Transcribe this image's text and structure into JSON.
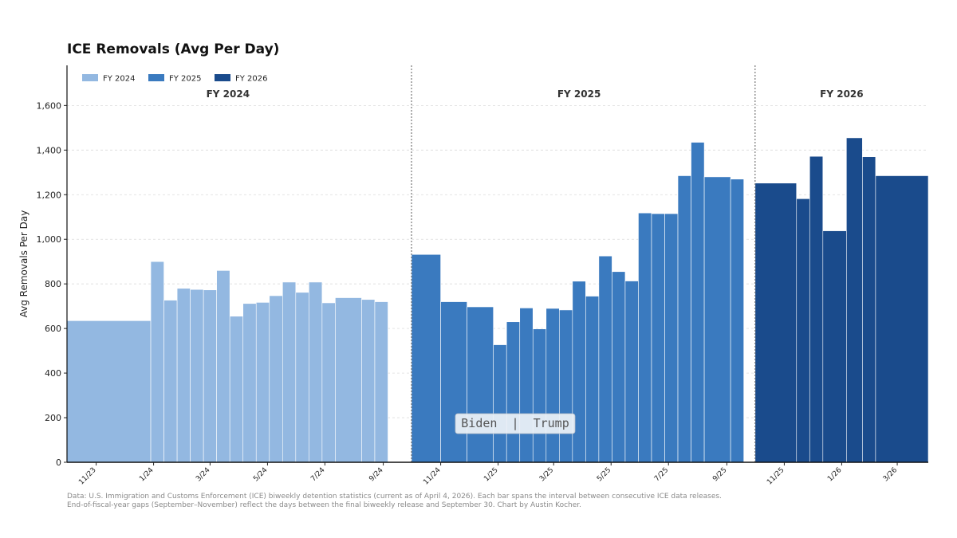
{
  "chart_data": {
    "type": "bar",
    "title": "ICE Removals (Avg Per Day)",
    "xlabel": "",
    "ylabel": "Avg Removals Per Day",
    "ylim": [
      0,
      1780
    ],
    "yticks": [
      0,
      200,
      400,
      600,
      800,
      1000,
      1200,
      1400,
      1600
    ],
    "ytick_labels": [
      "0",
      "200",
      "400",
      "600",
      "800",
      "1,000",
      "1,200",
      "1,400",
      "1,600"
    ],
    "x_axis_unit": "days since 2023-10-01",
    "xlim": [
      0,
      915
    ],
    "xticks": [
      {
        "label": "11/23",
        "day": 31
      },
      {
        "label": "1/24",
        "day": 92
      },
      {
        "label": "3/24",
        "day": 152
      },
      {
        "label": "5/24",
        "day": 213
      },
      {
        "label": "7/24",
        "day": 274
      },
      {
        "label": "9/24",
        "day": 336
      },
      {
        "label": "11/24",
        "day": 397
      },
      {
        "label": "1/25",
        "day": 458
      },
      {
        "label": "3/25",
        "day": 517
      },
      {
        "label": "5/25",
        "day": 578
      },
      {
        "label": "7/25",
        "day": 639
      },
      {
        "label": "9/25",
        "day": 701
      },
      {
        "label": "11/25",
        "day": 762
      },
      {
        "label": "1/26",
        "day": 823
      },
      {
        "label": "3/26",
        "day": 882
      }
    ],
    "grid": true,
    "legend_position": "top-left",
    "fy_dividers": [
      {
        "day": 366,
        "style": "dotted"
      },
      {
        "day": 731,
        "style": "dotted"
      }
    ],
    "fiscal_years": [
      {
        "label": "FY 2024",
        "color": "#93b8e1",
        "header_day": 171
      },
      {
        "label": "FY 2025",
        "color": "#3a7abf",
        "header_day": 544
      },
      {
        "label": "FY 2026",
        "color": "#1a4b8c",
        "header_day": 823
      }
    ],
    "series": [
      {
        "name": "FY 2024",
        "bars": [
          {
            "start": 0,
            "end": 89,
            "value": 635
          },
          {
            "start": 89,
            "end": 103,
            "value": 900
          },
          {
            "start": 103,
            "end": 117,
            "value": 727
          },
          {
            "start": 117,
            "end": 131,
            "value": 780
          },
          {
            "start": 131,
            "end": 145,
            "value": 775
          },
          {
            "start": 145,
            "end": 159,
            "value": 773
          },
          {
            "start": 159,
            "end": 173,
            "value": 860
          },
          {
            "start": 173,
            "end": 187,
            "value": 655
          },
          {
            "start": 187,
            "end": 201,
            "value": 712
          },
          {
            "start": 201,
            "end": 215,
            "value": 717
          },
          {
            "start": 215,
            "end": 229,
            "value": 747
          },
          {
            "start": 229,
            "end": 243,
            "value": 808
          },
          {
            "start": 243,
            "end": 257,
            "value": 762
          },
          {
            "start": 257,
            "end": 271,
            "value": 808
          },
          {
            "start": 271,
            "end": 285,
            "value": 715
          },
          {
            "start": 285,
            "end": 313,
            "value": 738
          },
          {
            "start": 313,
            "end": 327,
            "value": 730
          },
          {
            "start": 327,
            "end": 341,
            "value": 720
          }
        ]
      },
      {
        "name": "FY 2025",
        "bars": [
          {
            "start": 366,
            "end": 397,
            "value": 932
          },
          {
            "start": 397,
            "end": 425,
            "value": 720
          },
          {
            "start": 425,
            "end": 453,
            "value": 697
          },
          {
            "start": 453,
            "end": 467,
            "value": 527
          },
          {
            "start": 467,
            "end": 481,
            "value": 630
          },
          {
            "start": 481,
            "end": 495,
            "value": 692
          },
          {
            "start": 495,
            "end": 509,
            "value": 598
          },
          {
            "start": 509,
            "end": 523,
            "value": 690
          },
          {
            "start": 523,
            "end": 537,
            "value": 683
          },
          {
            "start": 537,
            "end": 551,
            "value": 812
          },
          {
            "start": 551,
            "end": 565,
            "value": 745
          },
          {
            "start": 565,
            "end": 579,
            "value": 925
          },
          {
            "start": 579,
            "end": 593,
            "value": 855
          },
          {
            "start": 593,
            "end": 607,
            "value": 813
          },
          {
            "start": 607,
            "end": 621,
            "value": 1118
          },
          {
            "start": 621,
            "end": 635,
            "value": 1115
          },
          {
            "start": 635,
            "end": 649,
            "value": 1115
          },
          {
            "start": 649,
            "end": 663,
            "value": 1285
          },
          {
            "start": 663,
            "end": 677,
            "value": 1435
          },
          {
            "start": 677,
            "end": 705,
            "value": 1280
          },
          {
            "start": 705,
            "end": 719,
            "value": 1270
          }
        ]
      },
      {
        "name": "FY 2026",
        "bars": [
          {
            "start": 731,
            "end": 775,
            "value": 1252
          },
          {
            "start": 775,
            "end": 789,
            "value": 1182
          },
          {
            "start": 789,
            "end": 803,
            "value": 1372
          },
          {
            "start": 803,
            "end": 828,
            "value": 1038
          },
          {
            "start": 828,
            "end": 845,
            "value": 1455
          },
          {
            "start": 845,
            "end": 859,
            "value": 1370
          },
          {
            "start": 859,
            "end": 915,
            "value": 1285
          }
        ]
      }
    ],
    "annotation": {
      "text": "Biden  |  Trump",
      "day": 476,
      "value": 175
    },
    "footnote_lines": [
      "Data: U.S. Immigration and Customs Enforcement (ICE) biweekly detention statistics (current as of April 4, 2026). Each bar spans the interval between consecutive ICE data releases.",
      "End-of-fiscal-year gaps (September–November) reflect the days between the final biweekly release and September 30. Chart by Austin Kocher."
    ]
  }
}
